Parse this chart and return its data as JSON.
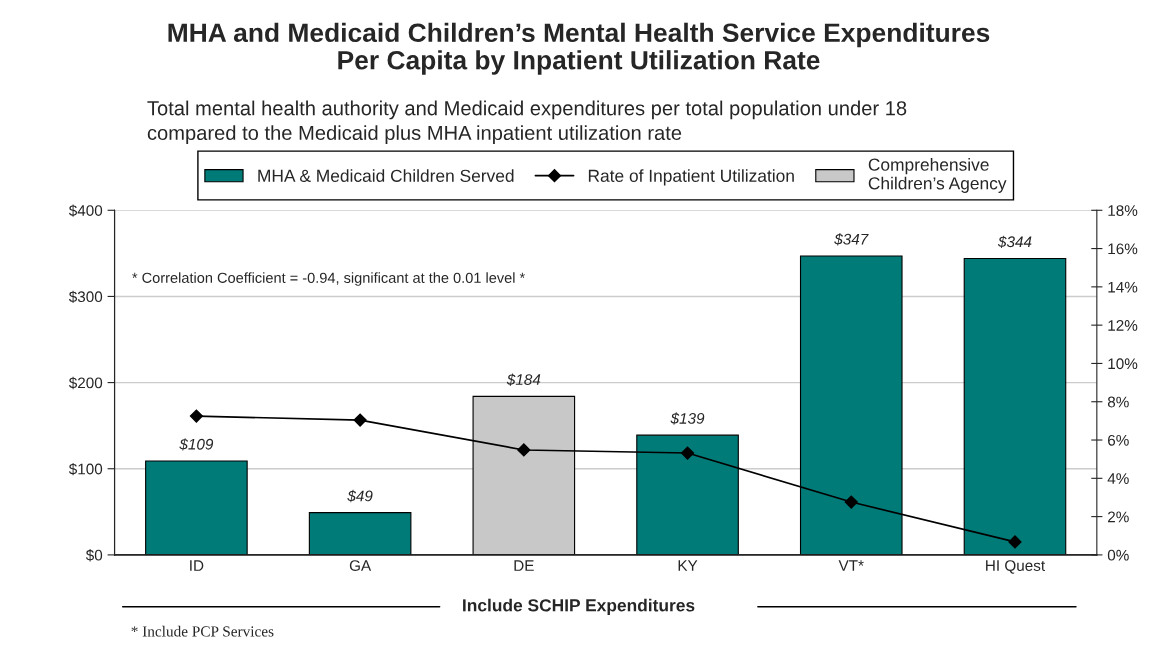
{
  "chart_data": {
    "type": "bar",
    "title": "MHA and Medicaid Children’s Mental Health Service Expenditures\nPer Capita by Inpatient Utilization Rate",
    "subtitle": "Total mental health authority and Medicaid expenditures per total population under 18\ncompared to the Medicaid plus MHA inpatient utilization rate",
    "categories": [
      "ID",
      "GA",
      "DE",
      "KY",
      "VT*",
      "HI Quest"
    ],
    "series": [
      {
        "name": "MHA & Medicaid Children Served",
        "color": "#007b78",
        "values": [
          109,
          49,
          null,
          139,
          347,
          344
        ],
        "value_labels": [
          "$109",
          "$49",
          null,
          "$139",
          "$347",
          "$344"
        ]
      },
      {
        "name": "Rate of Inpatient Utilization",
        "type": "line",
        "axis": "y2",
        "color": "#000000",
        "marker": "diamond",
        "values": [
          7.25,
          7.04,
          5.48,
          5.32,
          2.76,
          0.68
        ]
      },
      {
        "name": "Comprehensive\nChildren’s Agency",
        "color": "#c8c8c8",
        "values": [
          null,
          null,
          184,
          null,
          null,
          null
        ],
        "value_labels": [
          null,
          null,
          "$184",
          null,
          null,
          null
        ]
      }
    ],
    "ylim": [
      0,
      400
    ],
    "yticks": [
      {
        "value": 0,
        "label": "$0"
      },
      {
        "value": 100,
        "label": "$100"
      },
      {
        "value": 200,
        "label": "$200"
      },
      {
        "value": 300,
        "label": "$300"
      },
      {
        "value": 400,
        "label": "$400"
      }
    ],
    "y2lim": [
      0,
      18
    ],
    "y2ticks": [
      {
        "value": 0,
        "label": "0%"
      },
      {
        "value": 2,
        "label": "2%"
      },
      {
        "value": 4,
        "label": "4%"
      },
      {
        "value": 6,
        "label": "6%"
      },
      {
        "value": 8,
        "label": "8%"
      },
      {
        "value": 10,
        "label": "10%"
      },
      {
        "value": 12,
        "label": "12%"
      },
      {
        "value": 14,
        "label": "14%"
      },
      {
        "value": 16,
        "label": "16%"
      },
      {
        "value": 18,
        "label": "18%"
      }
    ],
    "grid": "y",
    "legend": "top",
    "annotations": [
      "* Correlation Coefficient = -0.94, significant at the 0.01 level *",
      "Include SCHIP Expenditures",
      "* Include PCP Services"
    ]
  }
}
